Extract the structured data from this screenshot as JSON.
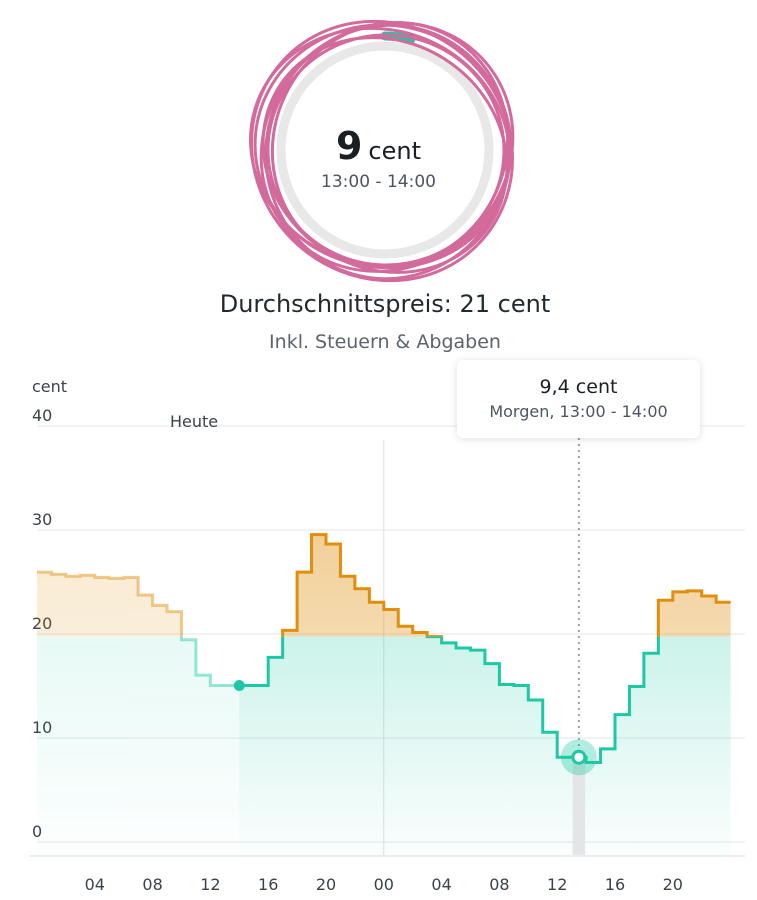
{
  "current_price": {
    "value": "9",
    "unit": "cent",
    "time": "13:00 - 14:00",
    "gauge_fraction": 0.04
  },
  "average": {
    "text": "Durchschnittspreis: 21 cent"
  },
  "note": {
    "text": "Inkl. Steuern & Abgaben"
  },
  "tooltip": {
    "value": "9,4 cent",
    "time": "Morgen, 13:00 - 14:00"
  },
  "colors": {
    "below_avg": "#1cc9a4",
    "above_avg": "#e08e0b",
    "gauge_track": "#e8e8e8",
    "scribble": "#d26a9c"
  },
  "chart_data": {
    "type": "line",
    "step": true,
    "ylabel": "cent",
    "ylim": [
      0,
      40
    ],
    "y_ticks": [
      "0",
      "10",
      "20",
      "30",
      "40"
    ],
    "x_ticks": [
      "04",
      "08",
      "12",
      "16",
      "20",
      "00",
      "04",
      "08",
      "12",
      "16",
      "20"
    ],
    "day_label": "Heute",
    "average": 21,
    "x_start_hour": 0,
    "series": [
      {
        "values": [
          27.2,
          27.0,
          26.8,
          26.9,
          26.7,
          26.6,
          26.7,
          25.0,
          24.0,
          23.4,
          20.7,
          17.3,
          16.3,
          16.3,
          16.3,
          16.3,
          19.0,
          21.6,
          27.2,
          30.8,
          29.9,
          26.8,
          25.6,
          24.3,
          23.6,
          22.0,
          21.4,
          21.0,
          20.4,
          19.9,
          19.7,
          18.4,
          16.4,
          16.3,
          14.9,
          11.8,
          9.4,
          9.4,
          8.9,
          10.2,
          13.5,
          16.2,
          19.4,
          24.5,
          25.3,
          25.4,
          24.9,
          24.3
        ],
        "past_count": 14,
        "highlight_index": 37,
        "highlight_value": 9.4
      }
    ],
    "grid": true,
    "midnight_divider_hour": 24
  }
}
